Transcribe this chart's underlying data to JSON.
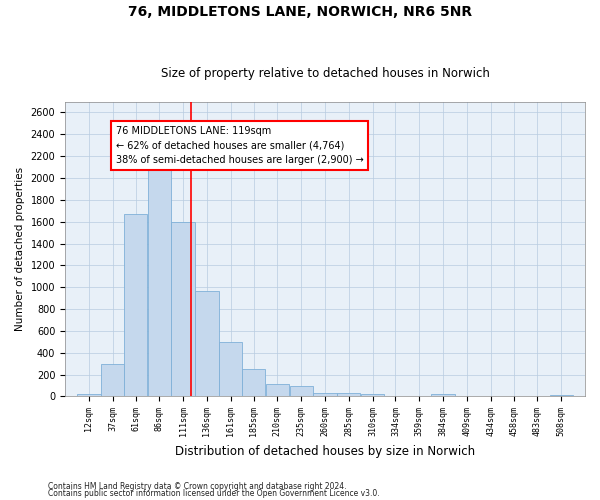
{
  "title": "76, MIDDLETONS LANE, NORWICH, NR6 5NR",
  "subtitle": "Size of property relative to detached houses in Norwich",
  "xlabel": "Distribution of detached houses by size in Norwich",
  "ylabel": "Number of detached properties",
  "bar_color": "#c5d8ed",
  "bar_edge_color": "#7fb0d8",
  "property_line_x": 119,
  "annotation_line1": "76 MIDDLETONS LANE: 119sqm",
  "annotation_line2": "← 62% of detached houses are smaller (4,764)",
  "annotation_line3": "38% of semi-detached houses are larger (2,900) →",
  "annotation_box_color": "white",
  "annotation_box_edge_color": "red",
  "vline_color": "red",
  "bin_centers": [
    12,
    37,
    61,
    86,
    111,
    136,
    161,
    185,
    210,
    235,
    260,
    285,
    310,
    334,
    359,
    384,
    409,
    434,
    458,
    483,
    508
  ],
  "bin_width": 25,
  "values": [
    25,
    295,
    1670,
    2130,
    1600,
    965,
    500,
    250,
    115,
    95,
    35,
    30,
    22,
    8,
    5,
    18,
    5,
    4,
    4,
    4,
    15
  ],
  "ylim": [
    0,
    2700
  ],
  "yticks": [
    0,
    200,
    400,
    600,
    800,
    1000,
    1200,
    1400,
    1600,
    1800,
    2000,
    2200,
    2400,
    2600
  ],
  "footnote1": "Contains HM Land Registry data © Crown copyright and database right 2024.",
  "footnote2": "Contains public sector information licensed under the Open Government Licence v3.0.",
  "title_fontsize": 10,
  "subtitle_fontsize": 8.5,
  "bg_color": "#e8f0f8"
}
